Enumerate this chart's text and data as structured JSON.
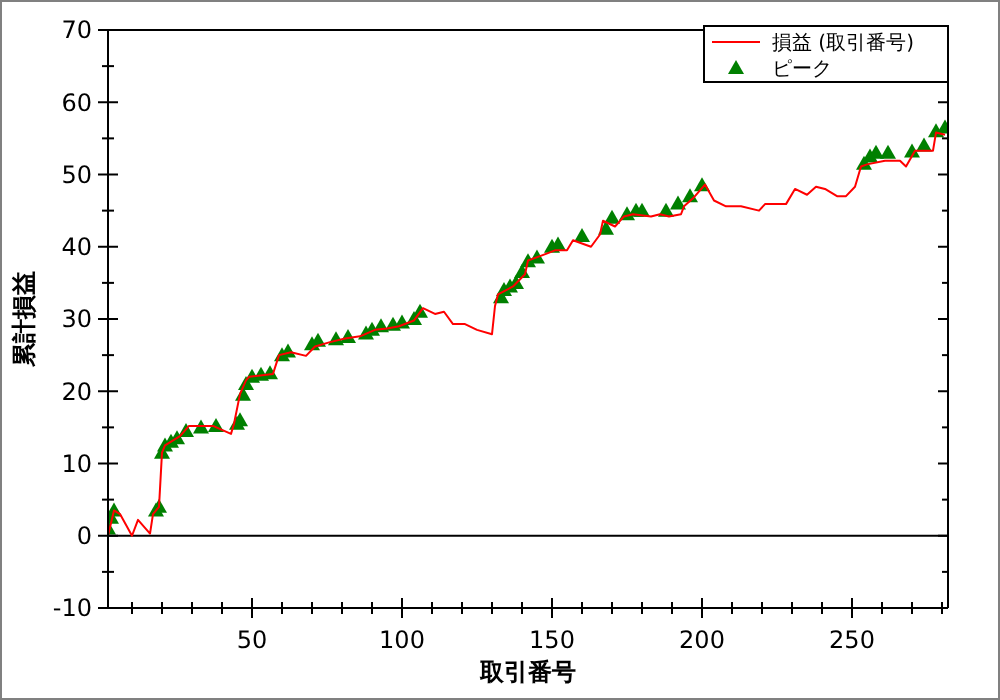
{
  "chart_data": {
    "type": "line",
    "xlabel": "取引番号",
    "ylabel": "累計損益",
    "xlim": [
      2,
      282
    ],
    "ylim": [
      -10,
      70
    ],
    "xticks": [
      50,
      100,
      150,
      200,
      250,
      {
        "value": 10,
        "label": null
      },
      {
        "value": 20,
        "label": null
      },
      {
        "value": 30,
        "label": null
      },
      {
        "value": 40,
        "label": null
      },
      {
        "value": 60,
        "label": null
      },
      {
        "value": 70,
        "label": null
      },
      {
        "value": 80,
        "label": null
      },
      {
        "value": 90,
        "label": null
      },
      {
        "value": 110,
        "label": null
      },
      {
        "value": 120,
        "label": null
      },
      {
        "value": 130,
        "label": null
      },
      {
        "value": 140,
        "label": null
      },
      {
        "value": 160,
        "label": null
      },
      {
        "value": 170,
        "label": null
      },
      {
        "value": 180,
        "label": null
      },
      {
        "value": 190,
        "label": null
      },
      {
        "value": 210,
        "label": null
      },
      {
        "value": 220,
        "label": null
      },
      {
        "value": 230,
        "label": null
      },
      {
        "value": 240,
        "label": null
      },
      {
        "value": 260,
        "label": null
      },
      {
        "value": 270,
        "label": null
      },
      {
        "value": 280,
        "label": null
      }
    ],
    "yticks": [
      -10,
      0,
      10,
      20,
      30,
      40,
      50,
      60,
      70
    ],
    "ref_lines": [
      {
        "axis": "y",
        "value": 0,
        "color": "#000000"
      }
    ],
    "legend": "top right",
    "grid": false,
    "series": [
      {
        "name": "損益 (取引番号)",
        "color": "#ff0000",
        "x": [
          2,
          4,
          6,
          10,
          12,
          16,
          17,
          19,
          20,
          21,
          26,
          29,
          37,
          43,
          44,
          46,
          48,
          49,
          57,
          59,
          63,
          68,
          71,
          76,
          81,
          86,
          91,
          95,
          99,
          104,
          107,
          111,
          114,
          117,
          121,
          125,
          130,
          131,
          132,
          137,
          141,
          142,
          146,
          151,
          155,
          157,
          163,
          166,
          167,
          171,
          174,
          177,
          183,
          186,
          189,
          193,
          194,
          197,
          201,
          204,
          208,
          213,
          219,
          221,
          228,
          231,
          235,
          238,
          241,
          245,
          248,
          251,
          253,
          255,
          261,
          266,
          268,
          271,
          275,
          277,
          278,
          281
        ],
        "values": [
          0,
          3.5,
          3,
          0,
          2.2,
          0.3,
          3,
          4,
          11.5,
          12.5,
          13.8,
          15.2,
          15.2,
          14.1,
          15.5,
          19.6,
          21.5,
          22,
          22.4,
          25,
          25.4,
          24.9,
          26.2,
          26.8,
          27.3,
          27.6,
          28.5,
          28.7,
          29,
          29.8,
          31.5,
          30.7,
          31,
          29.3,
          29.3,
          28.5,
          27.9,
          31.8,
          33.4,
          34.5,
          36.2,
          38.1,
          38.7,
          39.5,
          39.5,
          40.9,
          40,
          41.7,
          43.6,
          42.8,
          44.2,
          44.5,
          44.2,
          44.5,
          44.2,
          44.5,
          45.6,
          46.7,
          48.6,
          46.4,
          45.6,
          45.6,
          45,
          45.9,
          45.9,
          48,
          47.2,
          48.3,
          48,
          47,
          47,
          48.3,
          51.1,
          51.4,
          51.9,
          51.9,
          51.1,
          53.3,
          53.3,
          53.3,
          55.8,
          55.5
        ]
      },
      {
        "name": "ピーク",
        "type": "scatter",
        "color": "#008000",
        "marker": "triangle",
        "x": [
          2,
          3,
          4,
          18,
          19,
          20,
          21,
          23,
          25,
          28,
          33,
          38,
          45,
          46,
          47,
          48,
          50,
          53,
          56,
          60,
          62,
          70,
          72,
          78,
          82,
          88,
          90,
          93,
          97,
          100,
          104,
          106,
          133,
          134,
          136,
          138,
          140,
          142,
          145,
          150,
          152,
          160,
          168,
          170,
          175,
          178,
          180,
          188,
          192,
          196,
          200,
          254,
          256,
          258,
          262,
          270,
          274,
          278,
          281
        ],
        "values": [
          1,
          2.5,
          3.5,
          3.5,
          4,
          11.5,
          12.5,
          13,
          13.5,
          14.5,
          15,
          15.2,
          15.5,
          16,
          19.5,
          21,
          22,
          22.3,
          22.5,
          25,
          25.5,
          26.5,
          27,
          27.2,
          27.5,
          28,
          28.5,
          29,
          29.2,
          29.5,
          30,
          31,
          33,
          34,
          34.5,
          35,
          36.5,
          38,
          38.5,
          40,
          40.3,
          41.5,
          42.5,
          44,
          44.5,
          45,
          45,
          45,
          46,
          47,
          48.5,
          51.5,
          52.5,
          53,
          53,
          53.2,
          54,
          56,
          56.5
        ]
      }
    ]
  }
}
